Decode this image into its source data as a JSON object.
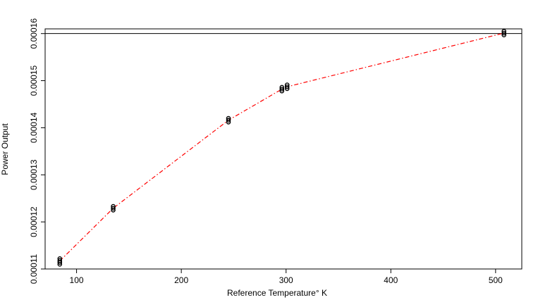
{
  "chart_data": {
    "type": "scatter",
    "title": "",
    "xlabel": "Reference Temperature° K",
    "ylabel": "Power Output",
    "xlim": [
      70,
      525
    ],
    "ylim": [
      0.00011,
      0.000161
    ],
    "xticks": [
      100,
      200,
      300,
      400,
      500
    ],
    "xtick_labels": [
      "100",
      "200",
      "300",
      "400",
      "500"
    ],
    "yticks": [
      0.00011,
      0.00012,
      0.00013,
      0.00014,
      0.00015,
      0.00016
    ],
    "ytick_labels": [
      "0.00011",
      "0.00012",
      "0.00013",
      "0.00014",
      "0.00015",
      "0.00016"
    ],
    "grid": false,
    "hline": 0.00016,
    "points": [
      {
        "x": 84,
        "y": 0.000111
      },
      {
        "x": 84,
        "y": 0.0001114
      },
      {
        "x": 84,
        "y": 0.0001118
      },
      {
        "x": 84,
        "y": 0.0001122
      },
      {
        "x": 135,
        "y": 0.0001225
      },
      {
        "x": 135,
        "y": 0.0001229
      },
      {
        "x": 135,
        "y": 0.0001233
      },
      {
        "x": 245,
        "y": 0.0001412
      },
      {
        "x": 245,
        "y": 0.0001416
      },
      {
        "x": 245,
        "y": 0.000142
      },
      {
        "x": 296,
        "y": 0.0001478
      },
      {
        "x": 296,
        "y": 0.0001482
      },
      {
        "x": 296,
        "y": 0.0001486
      },
      {
        "x": 301,
        "y": 0.0001483
      },
      {
        "x": 301,
        "y": 0.0001487
      },
      {
        "x": 301,
        "y": 0.0001491
      },
      {
        "x": 508,
        "y": 0.0001597
      },
      {
        "x": 508,
        "y": 0.0001601
      },
      {
        "x": 508,
        "y": 0.0001605
      }
    ],
    "fit_line": {
      "style": "dash-dot",
      "color": "#ff0000",
      "x": [
        84,
        135,
        245,
        296,
        301,
        508
      ],
      "y": [
        0.0001117,
        0.0001229,
        0.0001416,
        0.0001482,
        0.0001487,
        0.0001601
      ]
    },
    "colors": {
      "points": "#000000",
      "hline": "#000000",
      "box": "#000000"
    }
  }
}
